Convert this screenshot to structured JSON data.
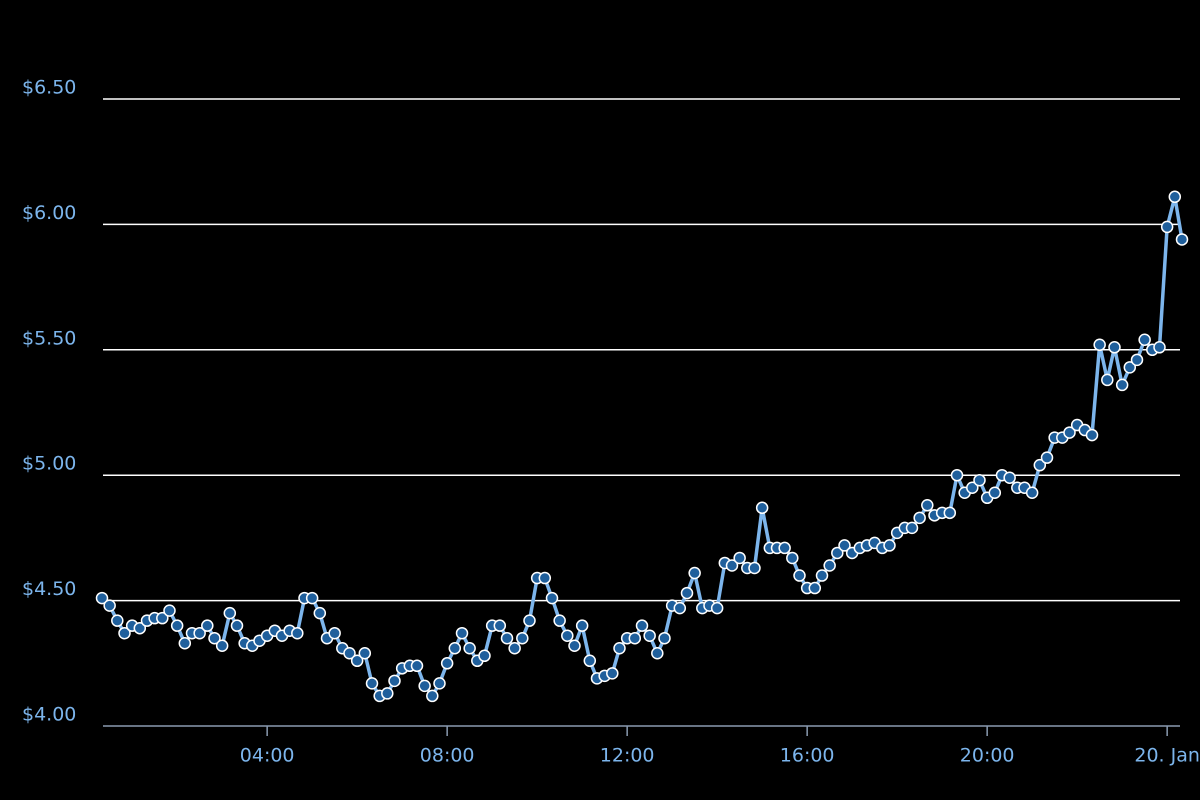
{
  "chart_data": {
    "type": "line",
    "x": [
      0.33,
      0.5,
      0.67,
      0.83,
      1,
      1.17,
      1.33,
      1.5,
      1.67,
      1.83,
      2,
      2.17,
      2.33,
      2.5,
      2.67,
      2.83,
      3,
      3.17,
      3.33,
      3.5,
      3.67,
      3.83,
      4,
      4.17,
      4.33,
      4.5,
      4.67,
      4.83,
      5,
      5.17,
      5.33,
      5.5,
      5.67,
      5.83,
      6,
      6.17,
      6.33,
      6.5,
      6.67,
      6.83,
      7,
      7.17,
      7.33,
      7.5,
      7.67,
      7.83,
      8,
      8.17,
      8.33,
      8.5,
      8.67,
      8.83,
      9,
      9.17,
      9.33,
      9.5,
      9.67,
      9.83,
      10,
      10.17,
      10.33,
      10.5,
      10.67,
      10.83,
      11,
      11.17,
      11.33,
      11.5,
      11.67,
      11.83,
      12,
      12.17,
      12.33,
      12.5,
      12.67,
      12.83,
      13,
      13.17,
      13.33,
      13.5,
      13.67,
      13.83,
      14,
      14.17,
      14.33,
      14.5,
      14.67,
      14.83,
      15,
      15.17,
      15.33,
      15.5,
      15.67,
      15.83,
      16,
      16.17,
      16.33,
      16.5,
      16.67,
      16.83,
      17,
      17.17,
      17.33,
      17.5,
      17.67,
      17.83,
      18,
      18.17,
      18.33,
      18.5,
      18.67,
      18.83,
      19,
      19.17,
      19.33,
      19.5,
      19.67,
      19.83,
      20,
      20.17,
      20.33,
      20.5,
      20.67,
      20.83,
      21,
      21.17,
      21.33,
      21.5,
      21.67,
      21.83,
      22,
      22.17,
      22.33,
      22.5,
      22.67,
      22.83,
      23,
      23.17,
      23.33,
      23.5,
      23.67,
      23.83,
      24,
      24.17,
      24.33
    ],
    "series": [
      {
        "color": "#7cb5ec",
        "marker_color": "#1f5f9c",
        "values": [
          4.51,
          4.48,
          4.42,
          4.37,
          4.4,
          4.39,
          4.42,
          4.43,
          4.43,
          4.46,
          4.4,
          4.33,
          4.37,
          4.37,
          4.4,
          4.35,
          4.32,
          4.45,
          4.4,
          4.33,
          4.32,
          4.34,
          4.36,
          4.38,
          4.36,
          4.38,
          4.37,
          4.51,
          4.51,
          4.45,
          4.35,
          4.37,
          4.31,
          4.29,
          4.26,
          4.29,
          4.17,
          4.12,
          4.13,
          4.18,
          4.23,
          4.24,
          4.24,
          4.16,
          4.12,
          4.17,
          4.25,
          4.31,
          4.37,
          4.31,
          4.26,
          4.28,
          4.4,
          4.4,
          4.35,
          4.31,
          4.35,
          4.42,
          4.59,
          4.59,
          4.51,
          4.42,
          4.36,
          4.32,
          4.4,
          4.26,
          4.19,
          4.2,
          4.21,
          4.31,
          4.35,
          4.35,
          4.4,
          4.36,
          4.29,
          4.35,
          4.48,
          4.47,
          4.53,
          4.61,
          4.47,
          4.48,
          4.47,
          4.65,
          4.64,
          4.67,
          4.63,
          4.63,
          4.87,
          4.71,
          4.71,
          4.71,
          4.67,
          4.6,
          4.55,
          4.55,
          4.6,
          4.64,
          4.69,
          4.72,
          4.69,
          4.71,
          4.72,
          4.73,
          4.71,
          4.72,
          4.77,
          4.79,
          4.79,
          4.83,
          4.88,
          4.84,
          4.85,
          4.85,
          5.0,
          4.93,
          4.95,
          4.98,
          4.91,
          4.93,
          5.0,
          4.99,
          4.95,
          4.95,
          4.93,
          5.04,
          5.07,
          5.15,
          5.15,
          5.17,
          5.2,
          5.18,
          5.16,
          5.52,
          5.38,
          5.51,
          5.36,
          5.43,
          5.46,
          5.54,
          5.5,
          5.51,
          5.99,
          6.11,
          5.94
        ]
      }
    ],
    "xlim": [
      0.33,
      24.33
    ],
    "xticks": [
      {
        "value": 4,
        "label": "04:00"
      },
      {
        "value": 8,
        "label": "08:00"
      },
      {
        "value": 12,
        "label": "12:00"
      },
      {
        "value": 16,
        "label": "16:00"
      },
      {
        "value": 20,
        "label": "20:00"
      },
      {
        "value": 24,
        "label": "20. Jan"
      }
    ],
    "ylim": [
      4,
      6.5
    ],
    "yticks": [
      {
        "value": 4,
        "label": "$4.00"
      },
      {
        "value": 4.5,
        "label": "$4.50"
      },
      {
        "value": 5,
        "label": "$5.00"
      },
      {
        "value": 5.5,
        "label": "$5.50"
      },
      {
        "value": 6,
        "label": "$6.00"
      },
      {
        "value": 6.5,
        "label": "$6.50"
      }
    ],
    "grid": true
  }
}
